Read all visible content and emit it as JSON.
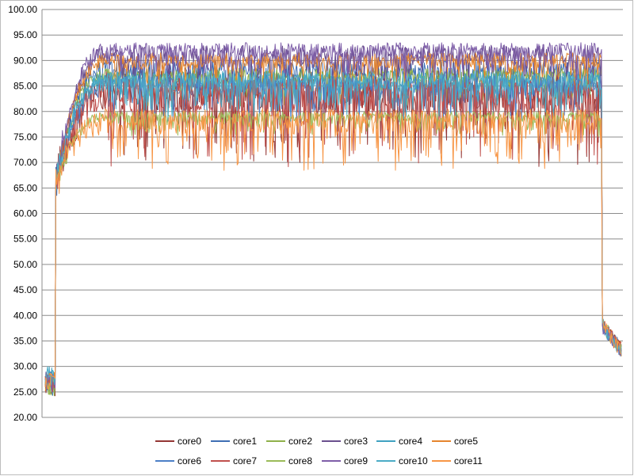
{
  "chart_data": {
    "type": "line",
    "title": "",
    "xlabel": "",
    "ylabel": "",
    "ylim": [
      20,
      100
    ],
    "y_tick_step": 5,
    "y_tick_labels": [
      "20.00",
      "25.00",
      "30.00",
      "35.00",
      "40.00",
      "45.00",
      "50.00",
      "55.00",
      "60.00",
      "65.00",
      "70.00",
      "75.00",
      "80.00",
      "85.00",
      "90.00",
      "95.00",
      "100.00"
    ],
    "grid": "horizontal",
    "legend_position": "bottom",
    "x_count": 700,
    "profile": {
      "idle_start_end": 0.018,
      "ramp_end": 0.11,
      "drop_start": 0.965,
      "end_level": 33
    },
    "series": [
      {
        "name": "core0",
        "color": "#943634",
        "level": 84,
        "spread": 8,
        "idle": 26
      },
      {
        "name": "core1",
        "color": "#3E6EB3",
        "level": 88,
        "spread": 4,
        "idle": 27
      },
      {
        "name": "core2",
        "color": "#8FB04A",
        "level": 87,
        "spread": 3,
        "idle": 26
      },
      {
        "name": "core3",
        "color": "#6A4F8E",
        "level": 91,
        "spread": 4,
        "idle": 27
      },
      {
        "name": "core4",
        "color": "#3FA1C1",
        "level": 86,
        "spread": 3,
        "idle": 28
      },
      {
        "name": "core5",
        "color": "#E5852E",
        "level": 90,
        "spread": 3,
        "idle": 27
      },
      {
        "name": "core6",
        "color": "#4C7FC7",
        "level": 85,
        "spread": 4,
        "idle": 26
      },
      {
        "name": "core7",
        "color": "#C0504D",
        "level": 83,
        "spread": 7,
        "idle": 27
      },
      {
        "name": "core8",
        "color": "#9BBB59",
        "level": 79,
        "spread": 2,
        "idle": 26
      },
      {
        "name": "core9",
        "color": "#7E5EA8",
        "level": 92,
        "spread": 3,
        "idle": 27
      },
      {
        "name": "core10",
        "color": "#4BACC6",
        "level": 86,
        "spread": 4,
        "idle": 28
      },
      {
        "name": "core11",
        "color": "#F79646",
        "level": 78,
        "spread": 5,
        "idle": 27
      }
    ]
  }
}
